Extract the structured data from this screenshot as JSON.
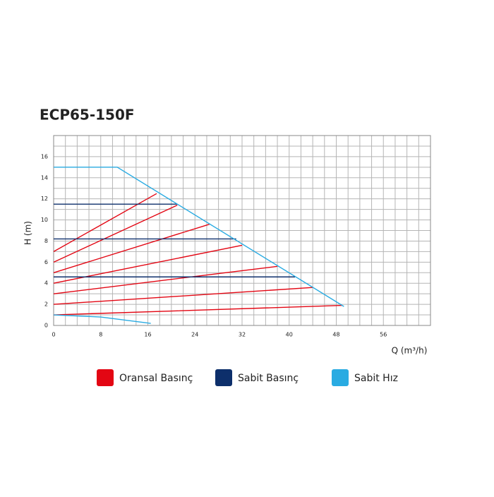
{
  "chart_data": {
    "type": "line",
    "title": "ECP65-150F",
    "x_label": "Q (m³/h)",
    "y_label": "H (m)",
    "xlim": [
      0,
      64
    ],
    "ylim": [
      0,
      18
    ],
    "xticks": [
      0,
      8,
      16,
      24,
      32,
      40,
      48,
      56
    ],
    "yticks": [
      0,
      2,
      4,
      6,
      8,
      10,
      12,
      14,
      16
    ],
    "minor_xticks": [
      0,
      2,
      4,
      6,
      8,
      10,
      12,
      14,
      16,
      18,
      20,
      22,
      24,
      26,
      28,
      30,
      32,
      34,
      36,
      38,
      40,
      42,
      44,
      46,
      48,
      50,
      52,
      54,
      56,
      58,
      60,
      62,
      64
    ],
    "minor_yticks": [
      0,
      1,
      2,
      3,
      4,
      5,
      6,
      7,
      8,
      9,
      10,
      11,
      12,
      13,
      14,
      15,
      16,
      17,
      18
    ],
    "grid": true,
    "legend": "bottom",
    "series": [
      {
        "name": "Oransal Basınç",
        "color": "#e30613",
        "x": [
          0,
          17.5,
          null,
          0,
          21,
          null,
          0,
          26.5,
          null,
          0,
          32,
          null,
          0,
          38,
          null,
          0,
          44,
          null,
          0,
          49
        ],
        "values": [
          7,
          12.5,
          null,
          6,
          11.4,
          null,
          5,
          9.6,
          null,
          4,
          7.6,
          null,
          3,
          5.6,
          null,
          2,
          3.6,
          null,
          1,
          1.9
        ]
      },
      {
        "name": "Sabit Basınç",
        "color": "#0d2f6b",
        "x": [
          0,
          21,
          null,
          0,
          31,
          null,
          0,
          41
        ],
        "values": [
          11.5,
          11.5,
          null,
          8.2,
          8.2,
          null,
          4.6,
          4.6
        ]
      },
      {
        "name": "Sabit Hız",
        "color": "#29abe2",
        "x": [
          0,
          10.8,
          49.3,
          null,
          0,
          8,
          16.5
        ],
        "values": [
          15,
          15,
          1.8,
          null,
          1,
          0.8,
          0.2
        ]
      }
    ]
  }
}
